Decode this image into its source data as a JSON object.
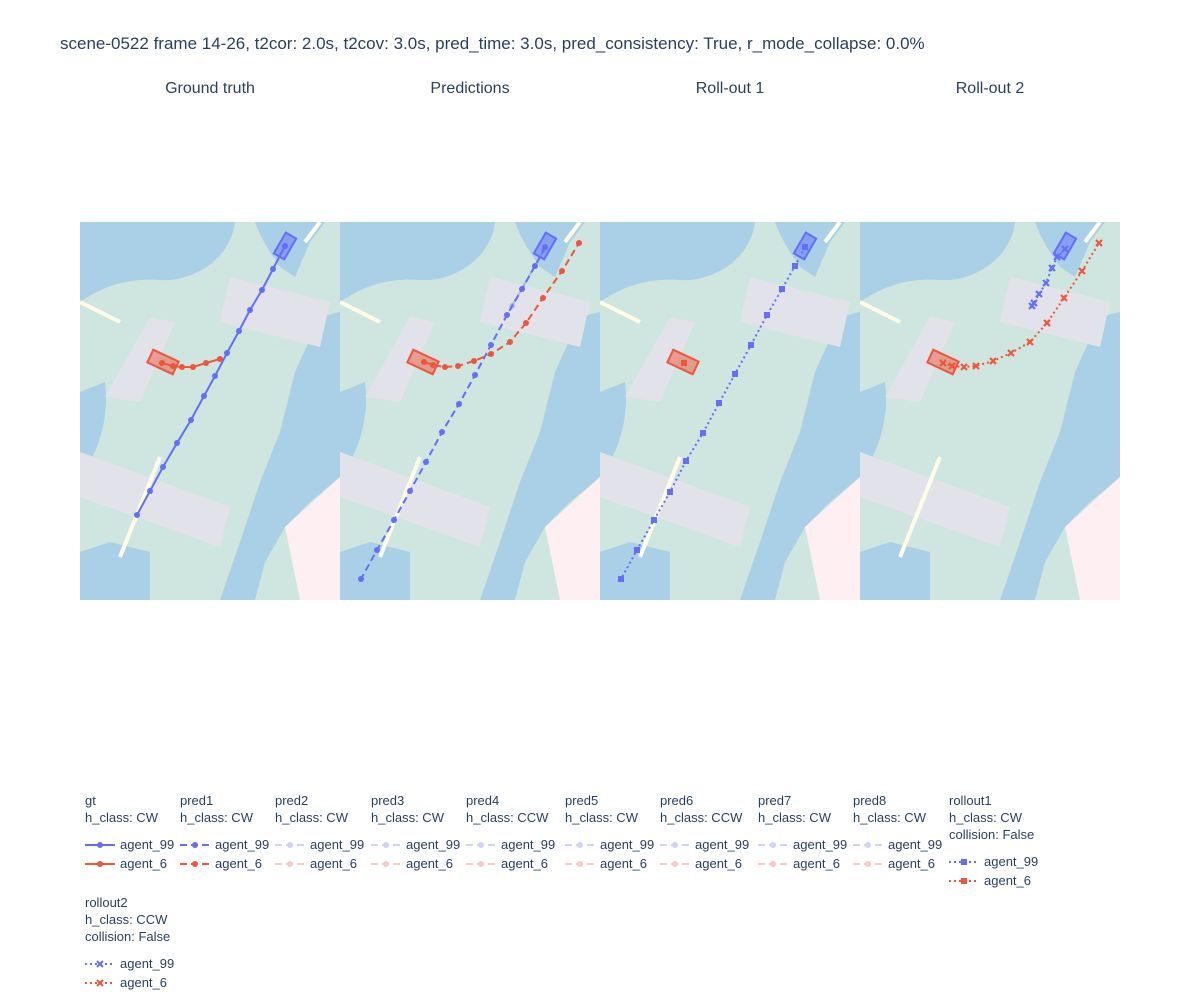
{
  "title": "scene-0522 frame 14-26, t2cor: 2.0s, t2cov: 3.0s, pred_time: 3.0s, pred_consistency: True, r_mode_collapse: 0.0%",
  "panels": [
    "Ground truth",
    "Predictions",
    "Roll-out 1",
    "Roll-out 2"
  ],
  "colors": {
    "agent_99": "#636efa",
    "agent_6": "#ef553b",
    "walkway": "#cfe5df",
    "water": "#a9d0e6",
    "crosswalk": "#e2e3ea",
    "restricted": "#fdeff2",
    "lane_mark": "#fffde8"
  },
  "chart_data": [
    {
      "type": "scatter",
      "panel": "Ground truth",
      "series": [
        {
          "name": "agent_99",
          "legendgroup": "gt",
          "line": "solid",
          "marker": "circle",
          "x": [
            285,
            273,
            262,
            250,
            239,
            227,
            215,
            204,
            191,
            177,
            163,
            150,
            137
          ],
          "y": [
            246,
            269,
            290,
            310,
            331,
            353,
            376,
            396,
            420,
            443,
            467,
            491,
            515
          ]
        },
        {
          "name": "agent_6",
          "legendgroup": "gt",
          "line": "solid",
          "marker": "circle",
          "x": [
            162,
            173,
            182,
            193,
            206,
            220
          ],
          "y": [
            363,
            366,
            367,
            367,
            363,
            359
          ]
        }
      ]
    },
    {
      "type": "scatter",
      "panel": "Predictions",
      "series": [
        {
          "name": "agent_99",
          "legendgroup": "pred1",
          "line": "dash",
          "marker": "circle",
          "x": [
            545,
            535,
            522,
            507,
            491,
            475,
            459,
            442,
            426,
            410,
            394,
            377,
            361
          ],
          "y": [
            247,
            266,
            289,
            315,
            345,
            375,
            404,
            432,
            462,
            491,
            520,
            550,
            579
          ]
        },
        {
          "name": "agent_6",
          "legendgroup": "pred1",
          "line": "dash",
          "marker": "circle",
          "x": [
            424,
            433,
            445,
            458,
            474,
            491,
            510,
            526,
            543,
            562,
            579
          ],
          "y": [
            362,
            365,
            367,
            366,
            361,
            354,
            342,
            323,
            298,
            271,
            243
          ]
        },
        {
          "name": "agent_99",
          "legendgroup": "pred2",
          "faded": true,
          "x": [
            544,
            512
          ],
          "y": [
            250,
            306
          ]
        }
      ]
    },
    {
      "type": "scatter",
      "panel": "Roll-out 1",
      "series": [
        {
          "name": "agent_99",
          "legendgroup": "rollout1",
          "line": "dot",
          "marker": "square",
          "x": [
            805,
            795,
            782,
            767,
            751,
            735,
            719,
            703,
            686,
            670,
            654,
            637,
            621
          ],
          "y": [
            247,
            266,
            289,
            315,
            345,
            374,
            403,
            433,
            461,
            492,
            520,
            550,
            579
          ]
        },
        {
          "name": "agent_6",
          "legendgroup": "rollout1",
          "line": "dot",
          "marker": "square",
          "x": [
            684
          ],
          "y": [
            363
          ]
        }
      ]
    },
    {
      "type": "scatter",
      "panel": "Roll-out 2",
      "series": [
        {
          "name": "agent_99",
          "legendgroup": "rollout2",
          "line": "dot",
          "marker": "x",
          "x": [
            1065,
            1057,
            1052,
            1046,
            1039,
            1034,
            1032
          ],
          "y": [
            249,
            257,
            268,
            283,
            294,
            303,
            306
          ]
        },
        {
          "name": "agent_6",
          "legendgroup": "rollout2",
          "line": "dot",
          "marker": "x",
          "x": [
            943,
            952,
            964,
            976,
            993,
            1011,
            1030,
            1047,
            1064,
            1082,
            1099
          ],
          "y": [
            363,
            366,
            367,
            366,
            361,
            353,
            342,
            323,
            298,
            271,
            243
          ]
        }
      ]
    }
  ],
  "legend": [
    {
      "title": [
        "gt",
        "h_class: CW"
      ],
      "style": "solid",
      "marker": "circle",
      "faded": false,
      "items": [
        "agent_99",
        "agent_6"
      ]
    },
    {
      "title": [
        "pred1",
        "h_class: CW"
      ],
      "style": "dash",
      "marker": "circle",
      "faded": false,
      "items": [
        "agent_99",
        "agent_6"
      ]
    },
    {
      "title": [
        "pred2",
        "h_class: CW"
      ],
      "style": "dash",
      "marker": "circle",
      "faded": true,
      "items": [
        "agent_99",
        "agent_6"
      ]
    },
    {
      "title": [
        "pred3",
        "h_class: CW"
      ],
      "style": "dash",
      "marker": "circle",
      "faded": true,
      "items": [
        "agent_99",
        "agent_6"
      ]
    },
    {
      "title": [
        "pred4",
        "h_class: CCW"
      ],
      "style": "dash",
      "marker": "circle",
      "faded": true,
      "items": [
        "agent_99",
        "agent_6"
      ]
    },
    {
      "title": [
        "pred5",
        "h_class: CW"
      ],
      "style": "dash",
      "marker": "circle",
      "faded": true,
      "items": [
        "agent_99",
        "agent_6"
      ]
    },
    {
      "title": [
        "pred6",
        "h_class: CCW"
      ],
      "style": "dash",
      "marker": "circle",
      "faded": true,
      "items": [
        "agent_99",
        "agent_6"
      ]
    },
    {
      "title": [
        "pred7",
        "h_class: CW"
      ],
      "style": "dash",
      "marker": "circle",
      "faded": true,
      "items": [
        "agent_99",
        "agent_6"
      ]
    },
    {
      "title": [
        "pred8",
        "h_class: CW"
      ],
      "style": "dash",
      "marker": "circle",
      "faded": true,
      "items": [
        "agent_99",
        "agent_6"
      ]
    },
    {
      "title": [
        "rollout1",
        "h_class: CW",
        "collision: False"
      ],
      "style": "dot",
      "marker": "square",
      "faded": false,
      "items": [
        "agent_99",
        "agent_6"
      ]
    },
    {
      "title": [
        "rollout2",
        "h_class: CCW",
        "collision: False"
      ],
      "style": "dot",
      "marker": "x",
      "faded": false,
      "items": [
        "agent_99",
        "agent_6"
      ]
    }
  ]
}
